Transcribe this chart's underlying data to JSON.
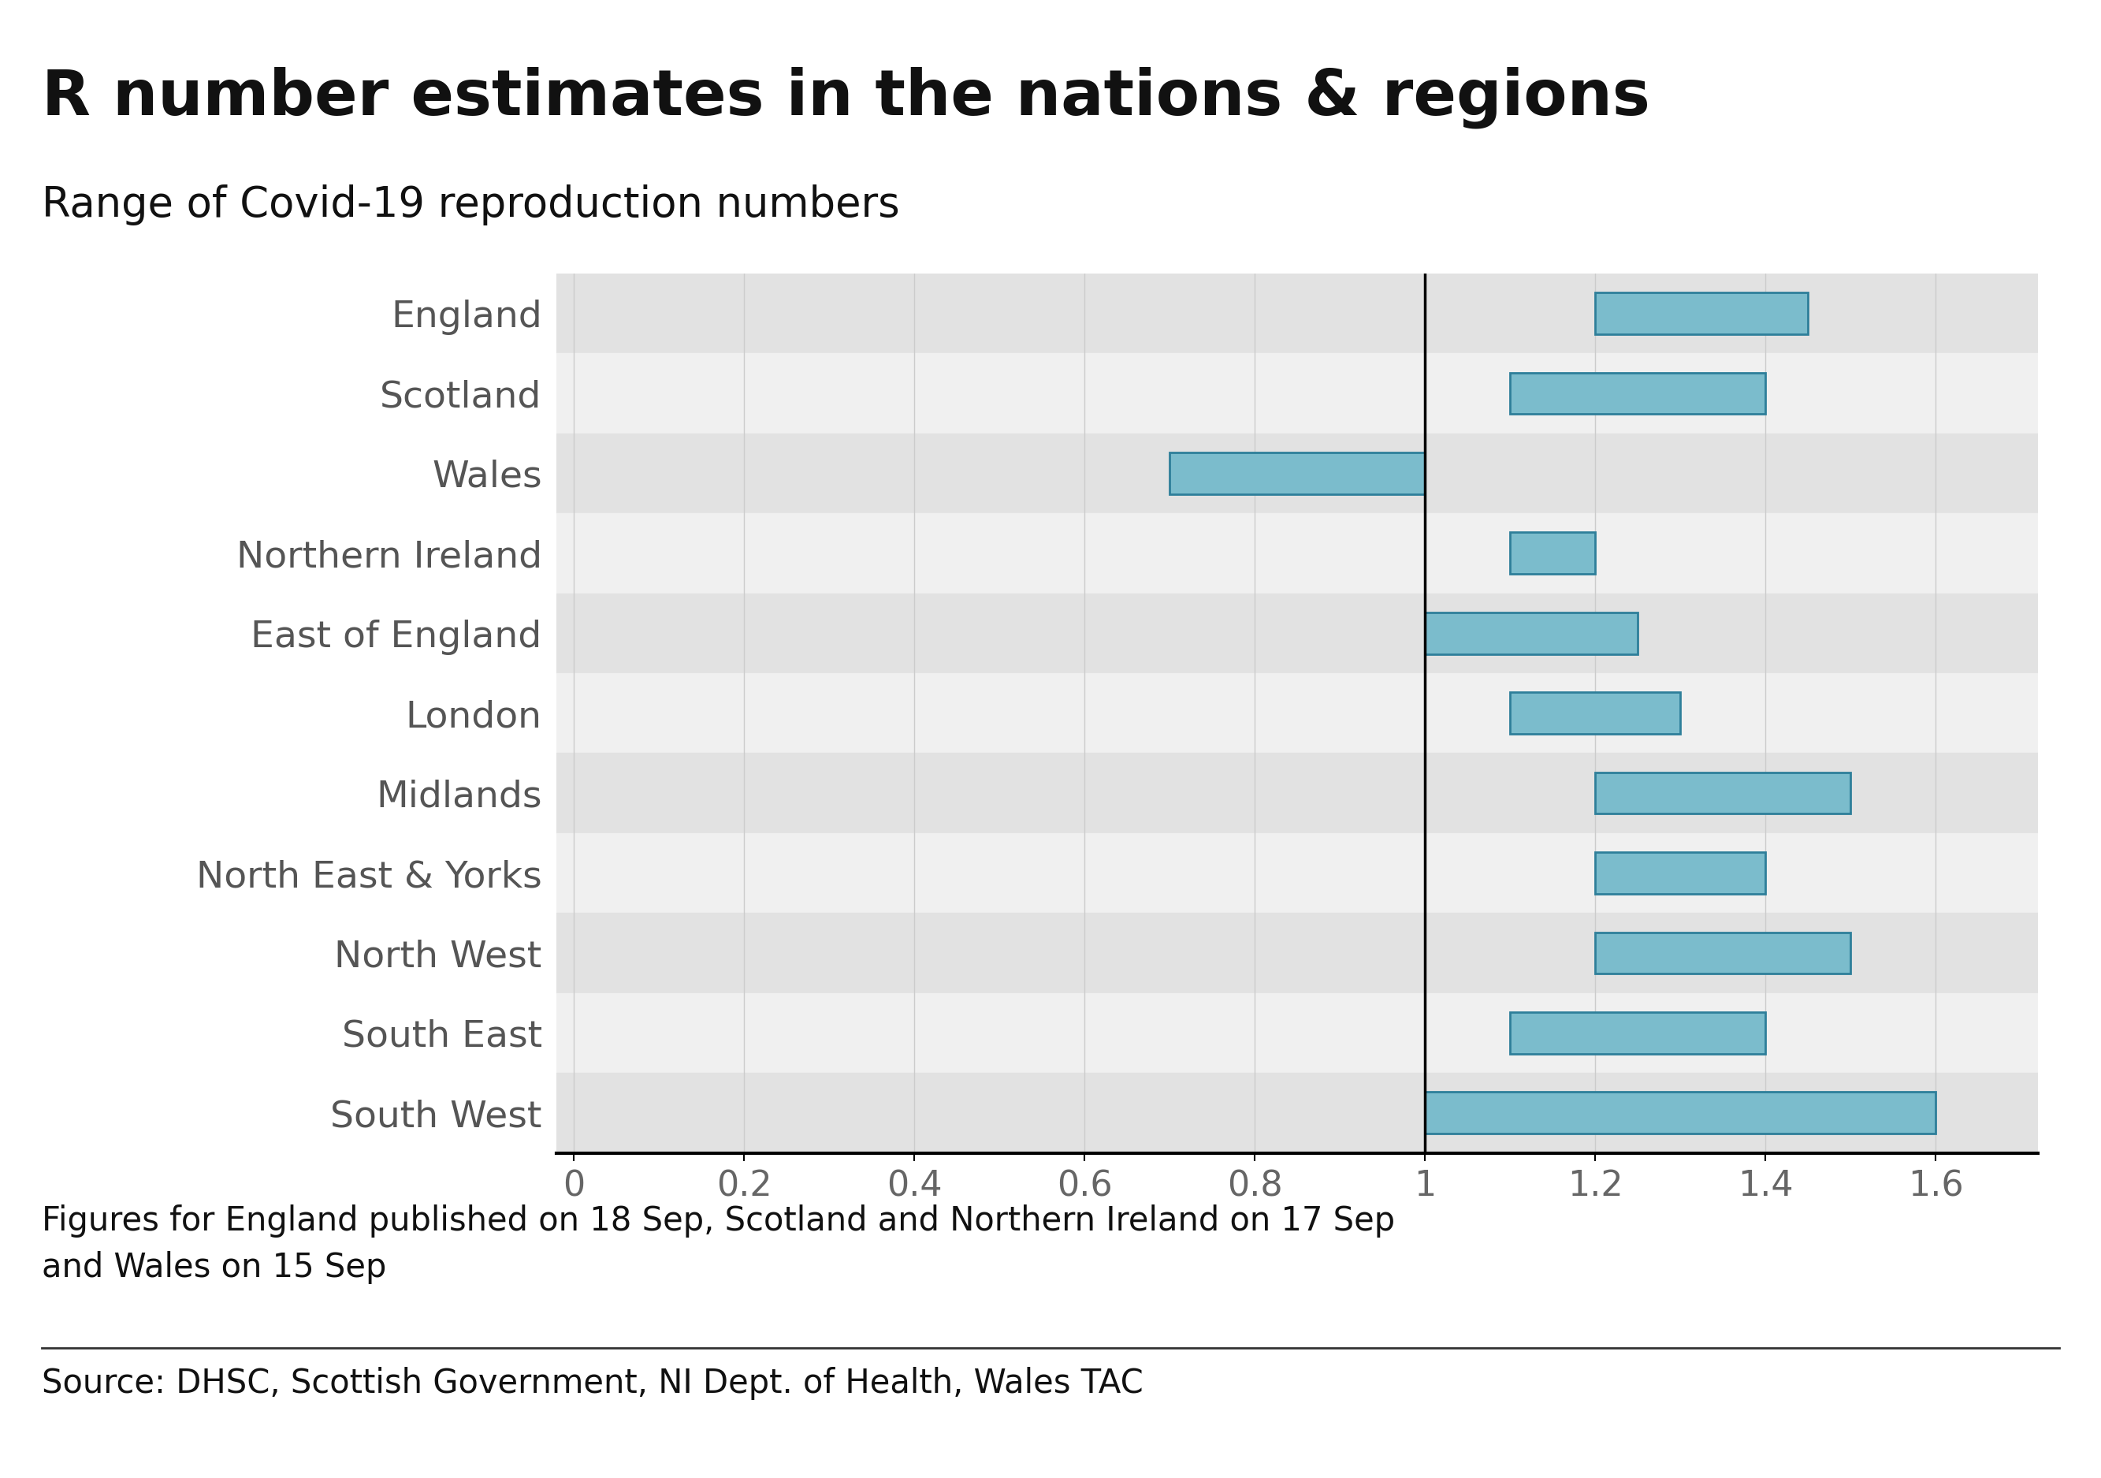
{
  "title": "R number estimates in the nations & regions",
  "subtitle": "Range of Covid-19 reproduction numbers",
  "categories": [
    "England",
    "Scotland",
    "Wales",
    "Northern Ireland",
    "East of England",
    "London",
    "Midlands",
    "North East & Yorks",
    "North West",
    "South East",
    "South West"
  ],
  "bar_low": [
    1.2,
    1.1,
    0.7,
    1.1,
    1.0,
    1.1,
    1.2,
    1.2,
    1.2,
    1.1,
    1.0
  ],
  "bar_high": [
    1.45,
    1.4,
    1.0,
    1.2,
    1.25,
    1.3,
    1.5,
    1.4,
    1.5,
    1.4,
    1.6
  ],
  "bar_color": "#7bbccc",
  "bar_edge_color": "#2e7f9a",
  "vline_x": 1.0,
  "xlim": [
    -0.02,
    1.72
  ],
  "xticks": [
    0,
    0.2,
    0.4,
    0.6,
    0.8,
    1.0,
    1.2,
    1.4,
    1.6
  ],
  "xtick_labels": [
    "0",
    "0.2",
    "0.4",
    "0.6",
    "0.8",
    "1",
    "1.2",
    "1.4",
    "1.6"
  ],
  "background_color": "#ffffff",
  "row_bg_odd": "#e2e2e2",
  "row_bg_even": "#f0f0f0",
  "note": "Figures for England published on 18 Sep, Scotland and Northern Ireland on 17 Sep\nand Wales on 15 Sep",
  "source": "Source: DHSC, Scottish Government, NI Dept. of Health, Wales TAC",
  "title_fontsize": 58,
  "subtitle_fontsize": 38,
  "label_fontsize": 34,
  "tick_fontsize": 32,
  "note_fontsize": 30,
  "source_fontsize": 30,
  "bar_height": 0.52,
  "label_color": "#555555",
  "tick_color": "#666666",
  "title_color": "#111111",
  "grid_color": "#cccccc"
}
